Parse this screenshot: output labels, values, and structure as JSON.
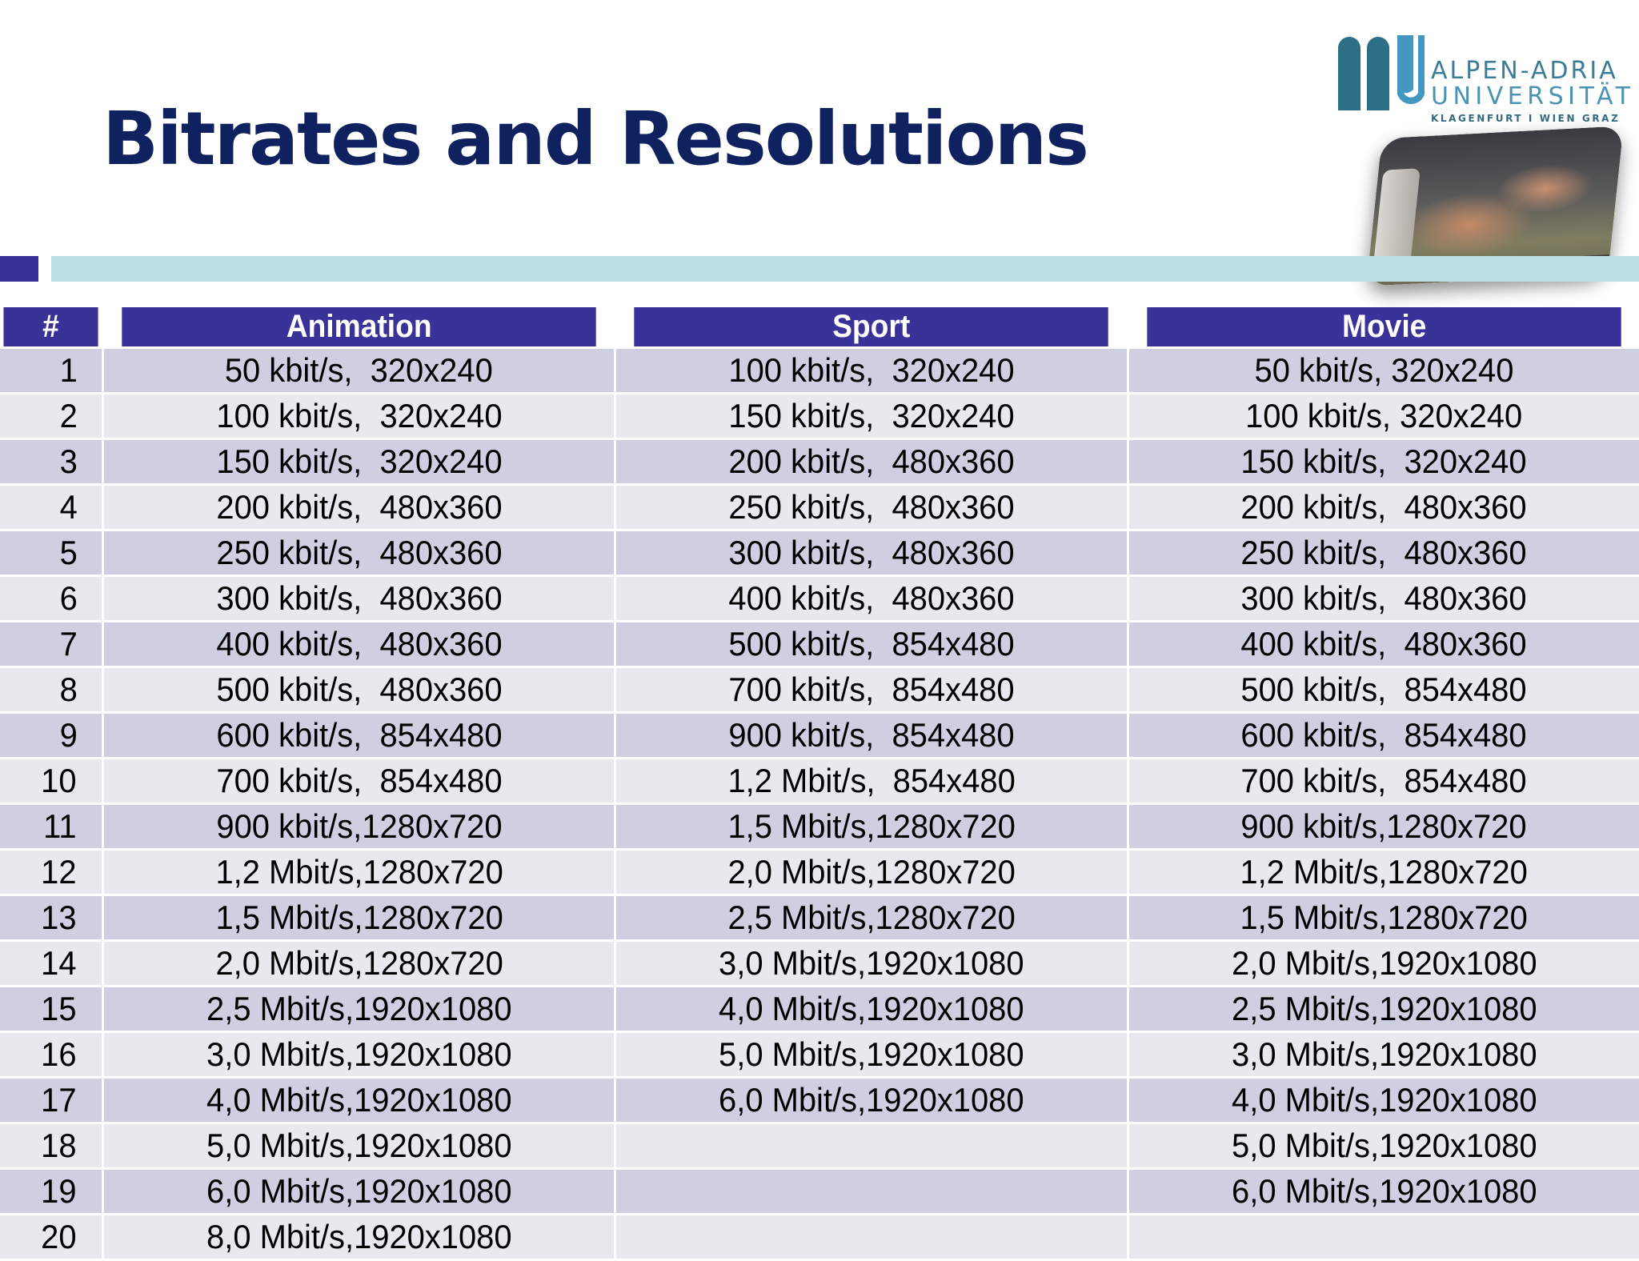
{
  "slide": {
    "title": "Bitrates and Resolutions",
    "colors": {
      "title": "#0f215f",
      "header_bg": "#393399",
      "row_odd": "#cfcfe2",
      "row_even": "#e8e8ef",
      "accent_bar": "#bde0e2"
    }
  },
  "logo": {
    "line1": "ALPEN-ADRIA",
    "line2": "UNIVERSITÄT",
    "line3": "KLAGENFURT I WIEN GRAZ"
  },
  "table": {
    "headers": [
      "#",
      "Animation",
      "Sport",
      "Movie"
    ],
    "rows": [
      {
        "n": "1",
        "animation": "50 kbit/s,  320x240",
        "sport": "100 kbit/s,  320x240",
        "movie": "50 kbit/s, 320x240"
      },
      {
        "n": "2",
        "animation": "100 kbit/s,  320x240",
        "sport": "150 kbit/s,  320x240",
        "movie": "100 kbit/s, 320x240"
      },
      {
        "n": "3",
        "animation": "150 kbit/s,  320x240",
        "sport": "200 kbit/s,  480x360",
        "movie": "150 kbit/s,  320x240"
      },
      {
        "n": "4",
        "animation": "200 kbit/s,  480x360",
        "sport": "250 kbit/s,  480x360",
        "movie": "200 kbit/s,  480x360"
      },
      {
        "n": "5",
        "animation": "250 kbit/s,  480x360",
        "sport": "300 kbit/s,  480x360",
        "movie": "250 kbit/s,  480x360"
      },
      {
        "n": "6",
        "animation": "300 kbit/s,  480x360",
        "sport": "400 kbit/s,  480x360",
        "movie": "300 kbit/s,  480x360"
      },
      {
        "n": "7",
        "animation": "400 kbit/s,  480x360",
        "sport": "500 kbit/s,  854x480",
        "movie": "400 kbit/s,  480x360"
      },
      {
        "n": "8",
        "animation": "500 kbit/s,  480x360",
        "sport": "700 kbit/s,  854x480",
        "movie": "500 kbit/s,  854x480"
      },
      {
        "n": "9",
        "animation": "600 kbit/s,  854x480",
        "sport": "900 kbit/s,  854x480",
        "movie": "600 kbit/s,  854x480"
      },
      {
        "n": "10",
        "animation": "700 kbit/s,  854x480",
        "sport": "1,2 Mbit/s,  854x480",
        "movie": "700 kbit/s,  854x480"
      },
      {
        "n": "11",
        "animation": "900 kbit/s,1280x720",
        "sport": "1,5 Mbit/s,1280x720",
        "movie": "900 kbit/s,1280x720"
      },
      {
        "n": "12",
        "animation": "1,2 Mbit/s,1280x720",
        "sport": "2,0 Mbit/s,1280x720",
        "movie": "1,2 Mbit/s,1280x720"
      },
      {
        "n": "13",
        "animation": "1,5 Mbit/s,1280x720",
        "sport": "2,5 Mbit/s,1280x720",
        "movie": "1,5 Mbit/s,1280x720"
      },
      {
        "n": "14",
        "animation": "2,0 Mbit/s,1280x720",
        "sport": "3,0 Mbit/s,1920x1080",
        "movie": "2,0 Mbit/s,1920x1080"
      },
      {
        "n": "15",
        "animation": "2,5 Mbit/s,1920x1080",
        "sport": "4,0 Mbit/s,1920x1080",
        "movie": "2,5 Mbit/s,1920x1080"
      },
      {
        "n": "16",
        "animation": "3,0 Mbit/s,1920x1080",
        "sport": "5,0 Mbit/s,1920x1080",
        "movie": "3,0 Mbit/s,1920x1080"
      },
      {
        "n": "17",
        "animation": "4,0 Mbit/s,1920x1080",
        "sport": "6,0 Mbit/s,1920x1080",
        "movie": "4,0 Mbit/s,1920x1080"
      },
      {
        "n": "18",
        "animation": "5,0 Mbit/s,1920x1080",
        "sport": "",
        "movie": "5,0 Mbit/s,1920x1080"
      },
      {
        "n": "19",
        "animation": "6,0 Mbit/s,1920x1080",
        "sport": "",
        "movie": "6,0 Mbit/s,1920x1080"
      },
      {
        "n": "20",
        "animation": "8,0 Mbit/s,1920x1080",
        "sport": "",
        "movie": ""
      }
    ]
  }
}
